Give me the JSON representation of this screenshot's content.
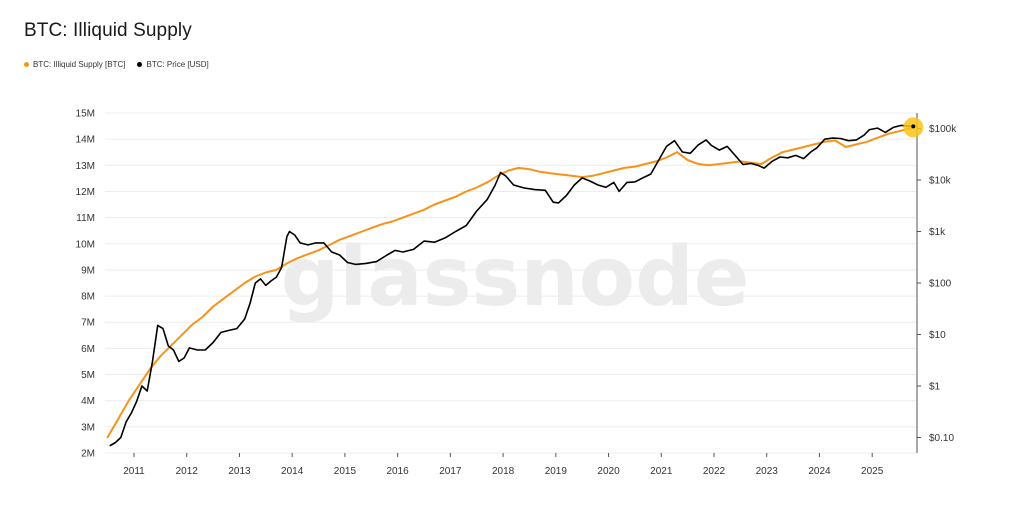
{
  "colors": {
    "illiquid": "#f7931a",
    "price": "#000000",
    "grid": "#ececec",
    "axis": "#555555",
    "marker": "#fcc419"
  },
  "watermark": "glassnode",
  "chart_data": {
    "type": "line",
    "title": "BTC: Illiquid Supply",
    "legend_position": "top-left",
    "grid": true,
    "x_ticks": [
      "2011",
      "2012",
      "2013",
      "2014",
      "2015",
      "2016",
      "2017",
      "2018",
      "2019",
      "2020",
      "2021",
      "2022",
      "2023",
      "2024",
      "2025"
    ],
    "x_range": [
      2010.45,
      2025.85
    ],
    "y_left": {
      "ticks": [
        "2M",
        "3M",
        "4M",
        "5M",
        "6M",
        "7M",
        "8M",
        "9M",
        "10M",
        "11M",
        "12M",
        "13M",
        "14M",
        "15M"
      ],
      "range": [
        2000000,
        15000000
      ]
    },
    "y_right": {
      "scale": "log",
      "ticks": [
        "$0.10",
        "$1",
        "$10",
        "$100",
        "$1k",
        "$10k",
        "$100k"
      ],
      "tick_values": [
        0.1,
        1,
        10,
        100,
        1000,
        10000,
        100000
      ],
      "range": [
        0.05,
        200000
      ]
    },
    "series": [
      {
        "name": "BTC: Illiquid Supply [BTC]",
        "axis": "left",
        "color": "#f7931a",
        "x": [
          2010.5,
          2010.7,
          2010.9,
          2011.1,
          2011.3,
          2011.5,
          2011.7,
          2011.9,
          2012.1,
          2012.3,
          2012.5,
          2012.7,
          2012.9,
          2013.1,
          2013.3,
          2013.5,
          2013.7,
          2013.9,
          2014.1,
          2014.3,
          2014.5,
          2014.7,
          2014.9,
          2015.1,
          2015.3,
          2015.5,
          2015.7,
          2015.9,
          2016.1,
          2016.3,
          2016.5,
          2016.7,
          2016.9,
          2017.1,
          2017.3,
          2017.5,
          2017.7,
          2017.9,
          2018.1,
          2018.3,
          2018.5,
          2018.7,
          2018.9,
          2019.1,
          2019.3,
          2019.5,
          2019.7,
          2019.9,
          2020.1,
          2020.3,
          2020.5,
          2020.7,
          2020.9,
          2021.1,
          2021.3,
          2021.5,
          2021.7,
          2021.9,
          2022.1,
          2022.3,
          2022.5,
          2022.7,
          2022.9,
          2023.1,
          2023.3,
          2023.5,
          2023.7,
          2023.9,
          2024.1,
          2024.3,
          2024.5,
          2024.7,
          2024.9,
          2025.1,
          2025.3,
          2025.5,
          2025.7,
          2025.78
        ],
        "values": [
          2600000,
          3300000,
          4000000,
          4600000,
          5200000,
          5700000,
          6100000,
          6500000,
          6900000,
          7200000,
          7600000,
          7900000,
          8200000,
          8500000,
          8750000,
          8900000,
          9000000,
          9250000,
          9450000,
          9600000,
          9750000,
          9950000,
          10150000,
          10300000,
          10450000,
          10600000,
          10750000,
          10850000,
          11000000,
          11150000,
          11300000,
          11500000,
          11650000,
          11800000,
          12000000,
          12150000,
          12350000,
          12600000,
          12800000,
          12900000,
          12850000,
          12750000,
          12700000,
          12650000,
          12600000,
          12550000,
          12600000,
          12700000,
          12800000,
          12900000,
          12950000,
          13050000,
          13150000,
          13300000,
          13500000,
          13200000,
          13050000,
          13000000,
          13050000,
          13100000,
          13150000,
          13100000,
          13050000,
          13300000,
          13500000,
          13600000,
          13700000,
          13800000,
          13900000,
          13950000,
          13700000,
          13800000,
          13900000,
          14050000,
          14200000,
          14300000,
          14400000,
          14450000
        ]
      },
      {
        "name": "BTC: Price [USD]",
        "axis": "right",
        "color": "#000000",
        "x": [
          2010.55,
          2010.65,
          2010.75,
          2010.85,
          2010.95,
          2011.05,
          2011.15,
          2011.25,
          2011.35,
          2011.45,
          2011.55,
          2011.65,
          2011.75,
          2011.85,
          2011.95,
          2012.05,
          2012.2,
          2012.35,
          2012.5,
          2012.65,
          2012.8,
          2012.95,
          2013.1,
          2013.2,
          2013.3,
          2013.4,
          2013.5,
          2013.6,
          2013.7,
          2013.8,
          2013.9,
          2013.95,
          2014.05,
          2014.15,
          2014.3,
          2014.45,
          2014.6,
          2014.75,
          2014.9,
          2015.05,
          2015.2,
          2015.4,
          2015.6,
          2015.8,
          2015.95,
          2016.1,
          2016.3,
          2016.5,
          2016.7,
          2016.9,
          2017.1,
          2017.3,
          2017.5,
          2017.7,
          2017.85,
          2017.95,
          2018.05,
          2018.2,
          2018.4,
          2018.6,
          2018.8,
          2018.95,
          2019.05,
          2019.2,
          2019.35,
          2019.5,
          2019.65,
          2019.8,
          2019.95,
          2020.1,
          2020.2,
          2020.35,
          2020.5,
          2020.65,
          2020.8,
          2020.95,
          2021.1,
          2021.25,
          2021.4,
          2021.55,
          2021.7,
          2021.85,
          2021.95,
          2022.1,
          2022.25,
          2022.4,
          2022.55,
          2022.7,
          2022.85,
          2022.95,
          2023.1,
          2023.25,
          2023.4,
          2023.55,
          2023.7,
          2023.85,
          2023.95,
          2024.1,
          2024.25,
          2024.4,
          2024.55,
          2024.7,
          2024.85,
          2024.95,
          2025.1,
          2025.25,
          2025.4,
          2025.55,
          2025.7,
          2025.78
        ],
        "values": [
          0.07,
          0.08,
          0.1,
          0.2,
          0.3,
          0.5,
          1.0,
          0.8,
          3.0,
          15.0,
          13.0,
          6.0,
          5.0,
          3.0,
          3.5,
          5.5,
          5.0,
          5.0,
          7.0,
          11.0,
          12.0,
          13.0,
          20.0,
          40.0,
          100.0,
          120.0,
          90.0,
          110.0,
          130.0,
          200.0,
          800.0,
          1000.0,
          850.0,
          600.0,
          550.0,
          600.0,
          600.0,
          400.0,
          350.0,
          250.0,
          230.0,
          240.0,
          260.0,
          350.0,
          430.0,
          400.0,
          450.0,
          650.0,
          620.0,
          750.0,
          1000.0,
          1300.0,
          2500.0,
          4200.0,
          8000.0,
          14000.0,
          12000.0,
          8000.0,
          7000.0,
          6500.0,
          6300.0,
          3700.0,
          3600.0,
          5000.0,
          8000.0,
          11000.0,
          9500.0,
          8000.0,
          7200.0,
          9000.0,
          6000.0,
          9000.0,
          9200.0,
          11000.0,
          13000.0,
          24000.0,
          45000.0,
          58000.0,
          35000.0,
          33000.0,
          48000.0,
          60000.0,
          47000.0,
          38000.0,
          45000.0,
          30000.0,
          20000.0,
          21000.0,
          19000.0,
          17000.0,
          23000.0,
          28000.0,
          27000.0,
          30000.0,
          26000.0,
          36000.0,
          42000.0,
          62000.0,
          65000.0,
          64000.0,
          58000.0,
          60000.0,
          75000.0,
          95000.0,
          102000.0,
          84000.0,
          105000.0,
          115000.0,
          112000.0,
          110000.0
        ]
      }
    ]
  }
}
